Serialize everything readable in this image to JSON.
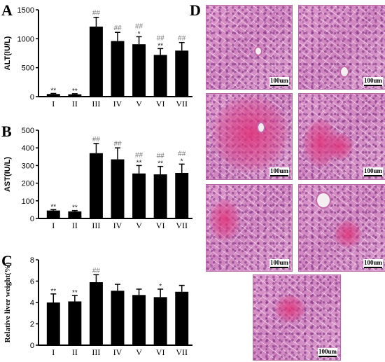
{
  "chart_data": [
    {
      "panel": "A",
      "type": "bar",
      "categories": [
        "I",
        "II",
        "III",
        "IV",
        "V",
        "VI",
        "VII"
      ],
      "values": [
        45,
        40,
        1210,
        960,
        905,
        720,
        795
      ],
      "errors": [
        10,
        10,
        160,
        150,
        130,
        110,
        140
      ],
      "significance_star": [
        "**",
        "**",
        "",
        "",
        "*",
        "**",
        ""
      ],
      "significance_hash": [
        "",
        "",
        "##",
        "##",
        "##",
        "##",
        "##"
      ],
      "ylabel": "ALT(IU/L)",
      "ylim": [
        0,
        1500
      ],
      "yticks": [
        0,
        500,
        1000,
        1500
      ]
    },
    {
      "panel": "B",
      "type": "bar",
      "categories": [
        "I",
        "II",
        "III",
        "IV",
        "V",
        "VI",
        "VII"
      ],
      "values": [
        45,
        40,
        370,
        335,
        255,
        250,
        258
      ],
      "errors": [
        5,
        5,
        55,
        65,
        45,
        45,
        50
      ],
      "significance_star": [
        "**",
        "**",
        "",
        "",
        "**",
        "**",
        "*"
      ],
      "significance_hash": [
        "",
        "",
        "##",
        "##",
        "##",
        "##",
        "##"
      ],
      "ylabel": "AST(IU/L)",
      "ylim": [
        0,
        500
      ],
      "yticks": [
        0,
        100,
        200,
        300,
        400,
        500
      ]
    },
    {
      "panel": "C",
      "type": "bar",
      "categories": [
        "I",
        "II",
        "III",
        "IV",
        "V",
        "VI",
        "VII"
      ],
      "values": [
        4.0,
        4.1,
        5.9,
        5.1,
        4.7,
        4.5,
        5.0
      ],
      "errors": [
        0.8,
        0.55,
        0.7,
        0.6,
        0.55,
        0.75,
        0.6
      ],
      "significance_star": [
        "**",
        "**",
        "",
        "",
        "",
        "*",
        ""
      ],
      "significance_hash": [
        "",
        "",
        "##",
        "",
        "",
        "",
        ""
      ],
      "ylabel": "Relative liver weight(%)",
      "ylim": [
        0,
        8
      ],
      "yticks": [
        0,
        2,
        4,
        6,
        8
      ]
    }
  ],
  "panel_d": {
    "letter": "D",
    "scale_label": "100um",
    "images": [
      {
        "id": "I"
      },
      {
        "id": "II"
      },
      {
        "id": "III"
      },
      {
        "id": "IV"
      },
      {
        "id": "V"
      },
      {
        "id": "VI"
      },
      {
        "id": "VII"
      }
    ]
  },
  "colors": {
    "bar": "#000000",
    "hash_mark": "#777777",
    "tissue": "#d98fc7"
  }
}
